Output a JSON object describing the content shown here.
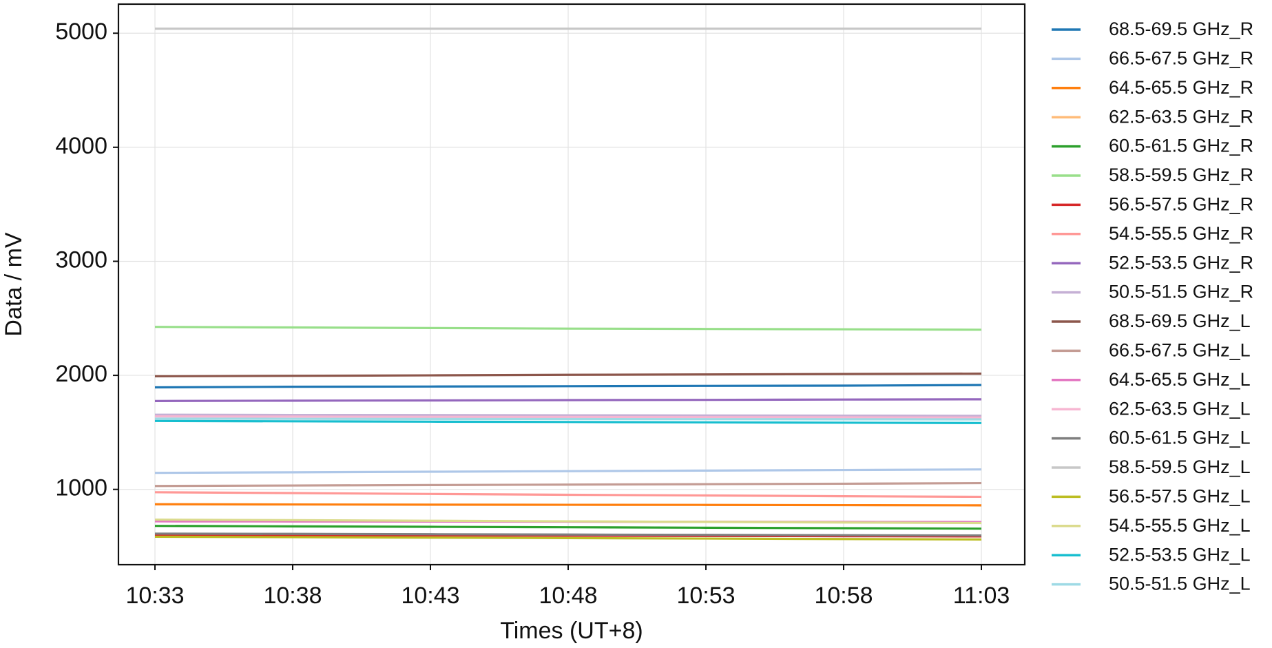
{
  "chart_data": {
    "type": "line",
    "x_label": "Times (UT+8)",
    "y_label": "Data / mV",
    "x": [
      "10:33",
      "10:38",
      "10:43",
      "10:48",
      "10:53",
      "10:58",
      "11:03"
    ],
    "ylim": [
      340,
      5255
    ],
    "yticks": [
      1000,
      2000,
      3000,
      4000,
      5000
    ],
    "grid": true,
    "legend": "outside right",
    "series": [
      {
        "name": "68.5-69.5 GHz_R",
        "color": "#1f77b4",
        "values": [
          1895,
          1900,
          1902,
          1905,
          1908,
          1910,
          1915
        ]
      },
      {
        "name": "66.5-67.5 GHz_R",
        "color": "#aec7e8",
        "values": [
          1145,
          1150,
          1155,
          1160,
          1165,
          1170,
          1175
        ]
      },
      {
        "name": "64.5-65.5 GHz_R",
        "color": "#ff7f0e",
        "values": [
          870,
          868,
          866,
          865,
          864,
          862,
          860
        ]
      },
      {
        "name": "62.5-63.5 GHz_R",
        "color": "#ffbb78",
        "values": [
          725,
          722,
          720,
          718,
          716,
          714,
          712
        ]
      },
      {
        "name": "60.5-61.5 GHz_R",
        "color": "#2ca02c",
        "values": [
          680,
          676,
          672,
          668,
          664,
          660,
          656
        ]
      },
      {
        "name": "58.5-59.5 GHz_R",
        "color": "#98df8a",
        "values": [
          2425,
          2420,
          2415,
          2410,
          2407,
          2404,
          2400
        ]
      },
      {
        "name": "56.5-57.5 GHz_R",
        "color": "#d62728",
        "values": [
          600,
          598,
          596,
          594,
          592,
          590,
          588
        ]
      },
      {
        "name": "54.5-55.5 GHz_R",
        "color": "#ff9896",
        "values": [
          975,
          968,
          960,
          953,
          947,
          940,
          935
        ]
      },
      {
        "name": "52.5-53.5 GHz_R",
        "color": "#9467bd",
        "values": [
          1775,
          1778,
          1780,
          1783,
          1785,
          1788,
          1790
        ]
      },
      {
        "name": "50.5-51.5 GHz_R",
        "color": "#c5b0d5",
        "values": [
          1655,
          1653,
          1652,
          1650,
          1648,
          1647,
          1645
        ]
      },
      {
        "name": "68.5-69.5 GHz_L",
        "color": "#8c564b",
        "values": [
          1992,
          1996,
          2000,
          2005,
          2008,
          2012,
          2015
        ]
      },
      {
        "name": "66.5-67.5 GHz_L",
        "color": "#c49c94",
        "values": [
          1030,
          1034,
          1038,
          1042,
          1046,
          1050,
          1055
        ]
      },
      {
        "name": "64.5-65.5 GHz_L",
        "color": "#e377c2",
        "values": [
          720,
          719,
          718,
          717,
          716,
          715,
          714
        ]
      },
      {
        "name": "62.5-63.5 GHz_L",
        "color": "#f7b6d2",
        "values": [
          1640,
          1638,
          1636,
          1635,
          1634,
          1632,
          1630
        ]
      },
      {
        "name": "60.5-61.5 GHz_L",
        "color": "#7f7f7f",
        "values": [
          612,
          610,
          607,
          604,
          601,
          598,
          596
        ]
      },
      {
        "name": "58.5-59.5 GHz_L",
        "color": "#c7c7c7",
        "values": [
          5040,
          5040,
          5040,
          5040,
          5040,
          5040,
          5040
        ]
      },
      {
        "name": "56.5-57.5 GHz_L",
        "color": "#bcbd22",
        "values": [
          585,
          581,
          577,
          573,
          569,
          565,
          561
        ]
      },
      {
        "name": "54.5-55.5 GHz_L",
        "color": "#dbdb8d",
        "values": [
          735,
          730,
          725,
          720,
          715,
          710,
          705
        ]
      },
      {
        "name": "52.5-53.5 GHz_L",
        "color": "#17becf",
        "values": [
          1600,
          1597,
          1594,
          1591,
          1588,
          1585,
          1582
        ]
      },
      {
        "name": "50.5-51.5 GHz_L",
        "color": "#9edae5",
        "values": [
          1620,
          1619,
          1618,
          1617,
          1616,
          1615,
          1614
        ]
      }
    ]
  }
}
